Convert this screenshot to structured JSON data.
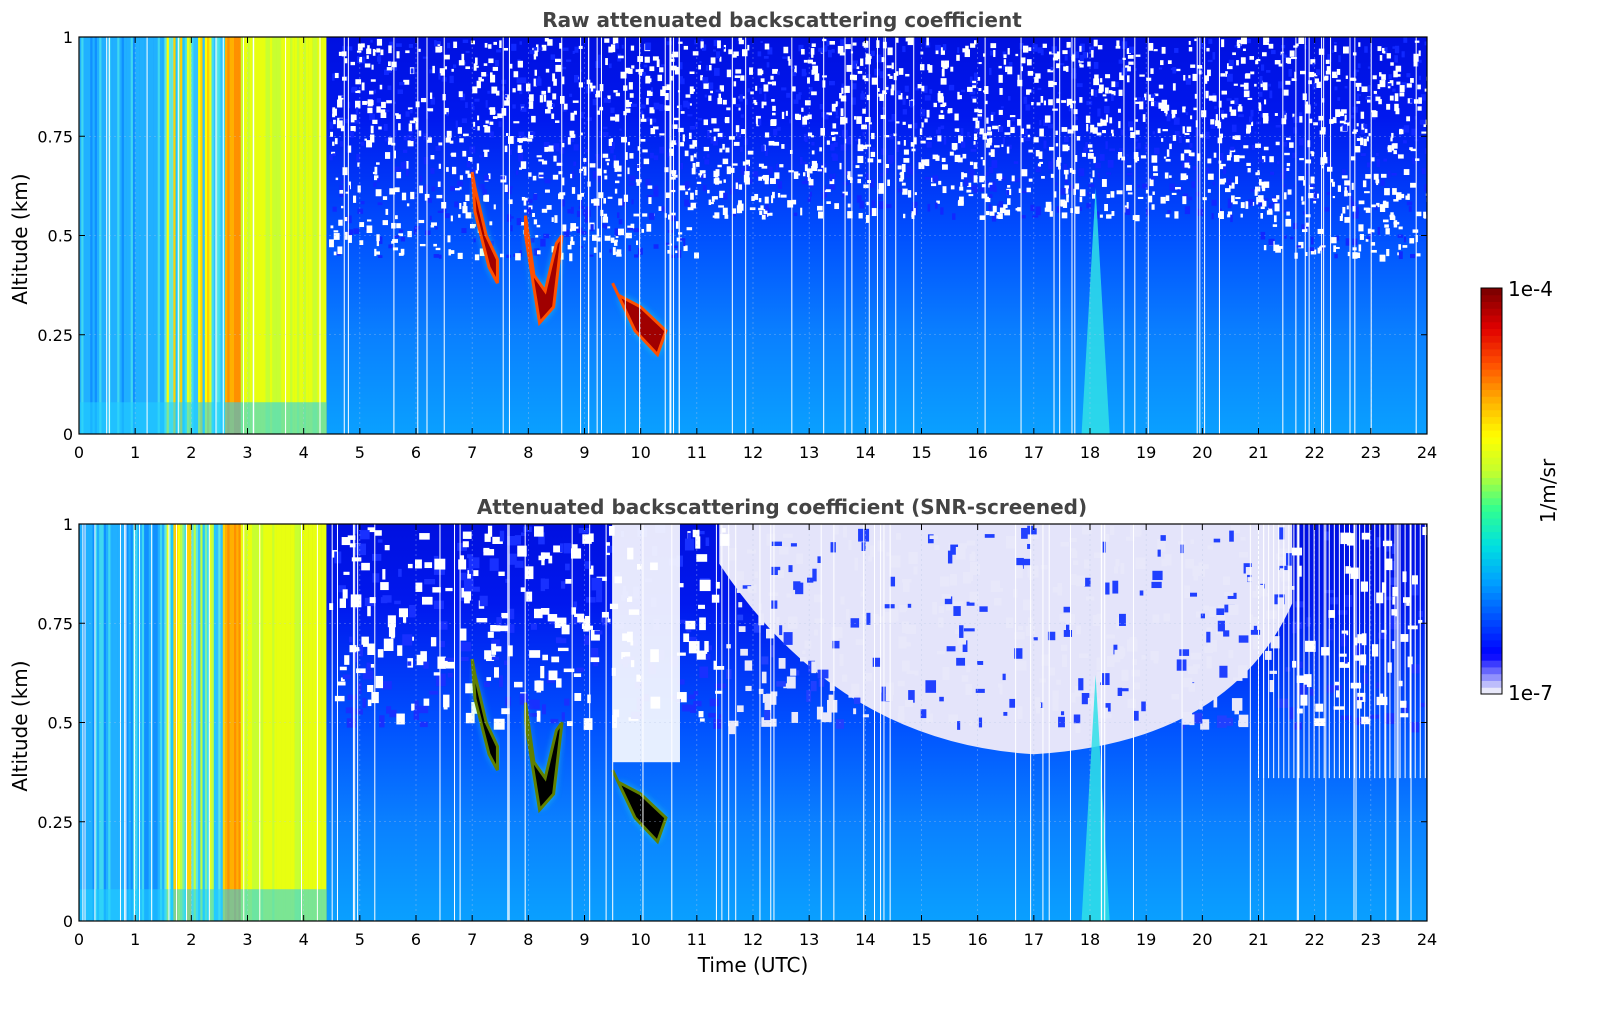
{
  "chart_data": [
    {
      "type": "heatmap",
      "title": "Raw attenuated backscattering coefficient",
      "xlabel": "",
      "ylabel": "Altitude (km)",
      "xlim": [
        0,
        24
      ],
      "ylim": [
        0,
        1
      ],
      "x_ticks": [
        "0",
        "1",
        "2",
        "3",
        "4",
        "5",
        "6",
        "7",
        "8",
        "9",
        "10",
        "11",
        "12",
        "13",
        "14",
        "15",
        "16",
        "17",
        "18",
        "19",
        "20",
        "21",
        "22",
        "23",
        "24"
      ],
      "y_ticks": [
        "0",
        "0.25",
        "0.5",
        "0.75",
        "1"
      ],
      "grid": true,
      "scale": "log",
      "features": [
        {
          "kind": "fog_or_low_cloud",
          "x_range": [
            0,
            4.4
          ],
          "y_range": [
            0,
            1
          ],
          "level": "high"
        },
        {
          "kind": "cloud_base",
          "x_range": [
            7.0,
            7.5
          ],
          "y_range": [
            0.4,
            0.65
          ],
          "level": "max"
        },
        {
          "kind": "cloud_base",
          "x_range": [
            7.9,
            8.6
          ],
          "y_range": [
            0.27,
            0.55
          ],
          "level": "max"
        },
        {
          "kind": "cloud_base",
          "x_range": [
            9.5,
            10.4
          ],
          "y_range": [
            0.2,
            0.35
          ],
          "level": "max"
        },
        {
          "kind": "plume",
          "x_range": [
            17.9,
            18.3
          ],
          "y_range": [
            0,
            0.6
          ],
          "level": "medium"
        }
      ]
    },
    {
      "type": "heatmap",
      "title": "Attenuated backscattering coefficient (SNR-screened)",
      "xlabel": "Time (UTC)",
      "ylabel": "Altitude (km)",
      "xlim": [
        0,
        24
      ],
      "ylim": [
        0,
        1
      ],
      "x_ticks": [
        "0",
        "1",
        "2",
        "3",
        "4",
        "5",
        "6",
        "7",
        "8",
        "9",
        "10",
        "11",
        "12",
        "13",
        "14",
        "15",
        "16",
        "17",
        "18",
        "19",
        "20",
        "21",
        "22",
        "23",
        "24"
      ],
      "y_ticks": [
        "0",
        "0.25",
        "0.5",
        "0.75",
        "1"
      ],
      "grid": true,
      "scale": "log",
      "features": [
        {
          "kind": "fog_or_low_cloud",
          "x_range": [
            0,
            4.4
          ],
          "y_range": [
            0,
            1
          ],
          "level": "high"
        },
        {
          "kind": "cloud_base",
          "x_range": [
            7.0,
            7.5
          ],
          "y_range": [
            0.38,
            0.65
          ],
          "level": "saturated"
        },
        {
          "kind": "cloud_base",
          "x_range": [
            7.9,
            8.6
          ],
          "y_range": [
            0.25,
            0.5
          ],
          "level": "saturated"
        },
        {
          "kind": "cloud_base",
          "x_range": [
            9.5,
            10.4
          ],
          "y_range": [
            0.18,
            0.35
          ],
          "level": "saturated"
        },
        {
          "kind": "screened_region",
          "x_range": [
            11.5,
            21.5
          ],
          "y_range": [
            0.4,
            1.0
          ],
          "level": "min"
        },
        {
          "kind": "plume",
          "x_range": [
            17.9,
            18.3
          ],
          "y_range": [
            0,
            0.65
          ],
          "level": "medium"
        }
      ]
    }
  ],
  "colorbar": {
    "label": "1/m/sr",
    "max_label": "1e-4",
    "min_label": "1e-7",
    "scale": "log",
    "colors": [
      "#e8e8fa",
      "#0000ff",
      "#0050ff",
      "#00a0ff",
      "#00e0e0",
      "#30ff90",
      "#c0ff30",
      "#ffff00",
      "#ffb000",
      "#ff5000",
      "#e00000",
      "#800000"
    ]
  }
}
